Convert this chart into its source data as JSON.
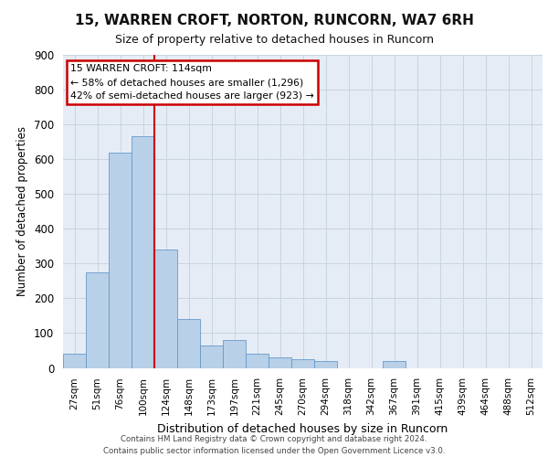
{
  "title1": "15, WARREN CROFT, NORTON, RUNCORN, WA7 6RH",
  "title2": "Size of property relative to detached houses in Runcorn",
  "xlabel": "Distribution of detached houses by size in Runcorn",
  "ylabel": "Number of detached properties",
  "bar_color": "#b8d0e8",
  "bar_edge_color": "#6699cc",
  "categories": [
    "27sqm",
    "51sqm",
    "76sqm",
    "100sqm",
    "124sqm",
    "148sqm",
    "173sqm",
    "197sqm",
    "221sqm",
    "245sqm",
    "270sqm",
    "294sqm",
    "318sqm",
    "342sqm",
    "367sqm",
    "391sqm",
    "415sqm",
    "439sqm",
    "464sqm",
    "488sqm",
    "512sqm"
  ],
  "values": [
    40,
    275,
    620,
    665,
    340,
    140,
    65,
    80,
    40,
    30,
    25,
    20,
    0,
    0,
    20,
    0,
    0,
    0,
    0,
    0,
    0
  ],
  "vline_x": 3.5,
  "annotation_text": "15 WARREN CROFT: 114sqm\n← 58% of detached houses are smaller (1,296)\n42% of semi-detached houses are larger (923) →",
  "annotation_box_color": "#ffffff",
  "annotation_box_edge_color": "#cc0000",
  "vline_color": "#cc0000",
  "grid_color": "#c8d4e0",
  "background_color": "#e6ecf5",
  "footer_text": "Contains HM Land Registry data © Crown copyright and database right 2024.\nContains public sector information licensed under the Open Government Licence v3.0.",
  "ylim": [
    0,
    900
  ],
  "yticks": [
    0,
    100,
    200,
    300,
    400,
    500,
    600,
    700,
    800,
    900
  ]
}
